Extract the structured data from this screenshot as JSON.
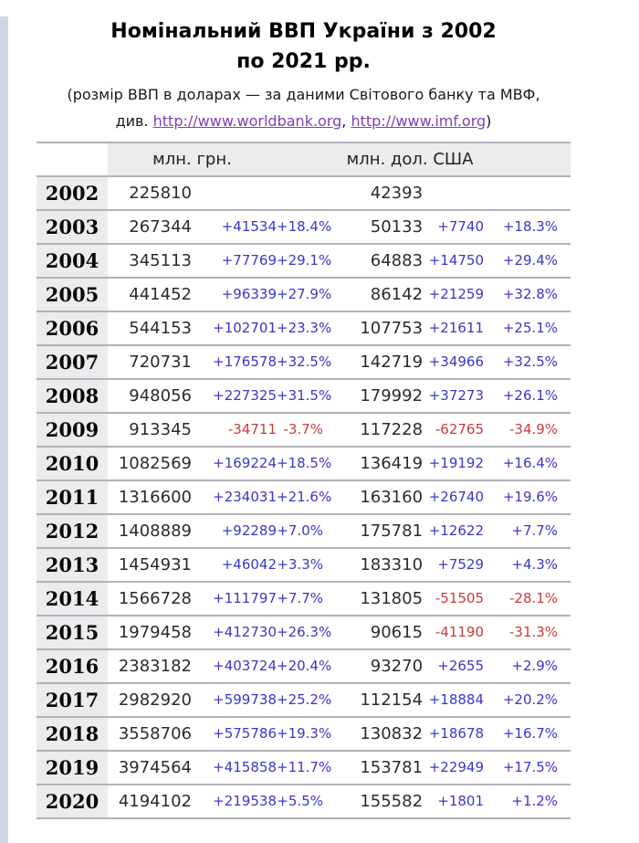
{
  "page": {
    "title_line1": "Номінальний ВВП України з 2002",
    "title_line2": "по 2021 рр.",
    "subtitle": {
      "line1": "(розмір ВВП в доларах — за даними Світового банку та МВФ,",
      "line2_prefix": "див. ",
      "link1": "http://www.worldbank.org",
      "separator": ", ",
      "link2": "http://www.imf.org",
      "suffix": ")"
    }
  },
  "colors": {
    "positive_change": "#3838c8",
    "negative_change": "#cc3a3a",
    "link": "#8140b4",
    "header_bg": "#ececee",
    "border": "#b2b2b8",
    "gutter": "#cfd6e3"
  },
  "table": {
    "unit_headers": [
      "млн. грн.",
      "млн. дол. США"
    ]
  },
  "chart_data": {
    "type": "table",
    "title": "Номінальний ВВП України з 2002 по 2021 рр.",
    "columns": [
      "year",
      "uah_mln",
      "uah_change",
      "uah_change_pct",
      "usd_mln",
      "usd_change",
      "usd_change_pct"
    ],
    "unit_headers": [
      "млн. грн.",
      "млн. дол. США"
    ],
    "rows": [
      [
        "2002",
        "225810",
        "",
        "",
        "42393",
        "",
        ""
      ],
      [
        "2003",
        "267344",
        "+41534",
        "+18.4%",
        "50133",
        "+7740",
        "+18.3%"
      ],
      [
        "2004",
        "345113",
        "+77769",
        "+29.1%",
        "64883",
        "+14750",
        "+29.4%"
      ],
      [
        "2005",
        "441452",
        "+96339",
        "+27.9%",
        "86142",
        "+21259",
        "+32.8%"
      ],
      [
        "2006",
        "544153",
        "+102701",
        "+23.3%",
        "107753",
        "+21611",
        "+25.1%"
      ],
      [
        "2007",
        "720731",
        "+176578",
        "+32.5%",
        "142719",
        "+34966",
        "+32.5%"
      ],
      [
        "2008",
        "948056",
        "+227325",
        "+31.5%",
        "179992",
        "+37273",
        "+26.1%"
      ],
      [
        "2009",
        "913345",
        "-34711",
        "-3.7%",
        "117228",
        "-62765",
        "-34.9%"
      ],
      [
        "2010",
        "1082569",
        "+169224",
        "+18.5%",
        "136419",
        "+19192",
        "+16.4%"
      ],
      [
        "2011",
        "1316600",
        "+234031",
        "+21.6%",
        "163160",
        "+26740",
        "+19.6%"
      ],
      [
        "2012",
        "1408889",
        "+92289",
        "+7.0%",
        "175781",
        "+12622",
        "+7.7%"
      ],
      [
        "2013",
        "1454931",
        "+46042",
        "+3.3%",
        "183310",
        "+7529",
        "+4.3%"
      ],
      [
        "2014",
        "1566728",
        "+111797",
        "+7.7%",
        "131805",
        "-51505",
        "-28.1%"
      ],
      [
        "2015",
        "1979458",
        "+412730",
        "+26.3%",
        "90615",
        "-41190",
        "-31.3%"
      ],
      [
        "2016",
        "2383182",
        "+403724",
        "+20.4%",
        "93270",
        "+2655",
        "+2.9%"
      ],
      [
        "2017",
        "2982920",
        "+599738",
        "+25.2%",
        "112154",
        "+18884",
        "+20.2%"
      ],
      [
        "2018",
        "3558706",
        "+575786",
        "+19.3%",
        "130832",
        "+18678",
        "+16.7%"
      ],
      [
        "2019",
        "3974564",
        "+415858",
        "+11.7%",
        "153781",
        "+22949",
        "+17.5%"
      ],
      [
        "2020",
        "4194102",
        "+219538",
        "+5.5%",
        "155582",
        "+1801",
        "+1.2%"
      ]
    ]
  }
}
